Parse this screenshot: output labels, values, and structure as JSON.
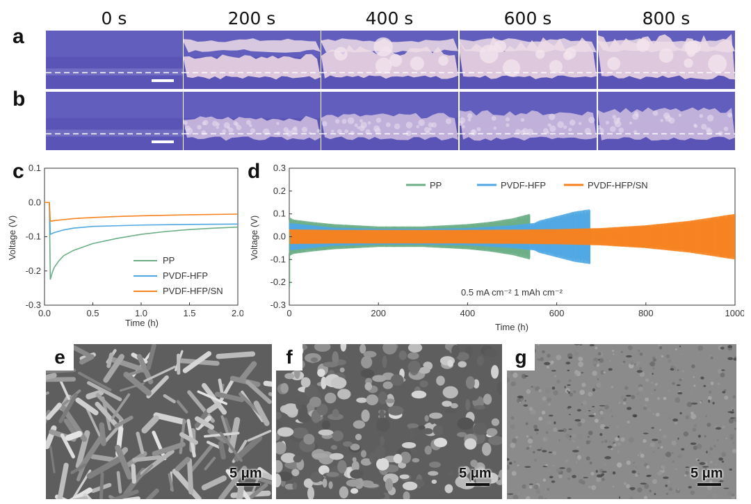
{
  "panels": {
    "a": "a",
    "b": "b",
    "c": "c",
    "d": "d",
    "e": "e",
    "f": "f",
    "g": "g"
  },
  "time_labels": [
    "0 s",
    "200 s",
    "400 s",
    "600 s",
    "800 s"
  ],
  "sem_scale_label": "5 μm",
  "colors": {
    "PP": "#6bae86",
    "PVDF-HFP": "#4ea7e3",
    "PVDF-HFP/SN": "#f7821e",
    "optical_bg": "#5a55b8",
    "deposit": "#e3cde0"
  },
  "chart_data": [
    {
      "type": "line",
      "panel": "c",
      "xlabel": "Time (h)",
      "ylabel": "Voltage (V)",
      "xlim": [
        0,
        2.0
      ],
      "ylim": [
        -0.3,
        0.1
      ],
      "xticks": [
        "0.0",
        "0.5",
        "1.0",
        "1.5",
        "2.0"
      ],
      "yticks": [
        "0.1",
        "0.0",
        "-0.1",
        "-0.2",
        "-0.3"
      ],
      "legend_position": "bottom-right",
      "series": [
        {
          "name": "PP",
          "color": "#6bae86",
          "x": [
            0,
            0.05,
            0.06,
            0.08,
            0.1,
            0.15,
            0.2,
            0.3,
            0.5,
            0.75,
            1.0,
            1.25,
            1.5,
            1.75,
            2.0
          ],
          "y": [
            0,
            0,
            -0.225,
            -0.205,
            -0.19,
            -0.17,
            -0.155,
            -0.14,
            -0.12,
            -0.105,
            -0.093,
            -0.085,
            -0.079,
            -0.075,
            -0.072
          ]
        },
        {
          "name": "PVDF-HFP",
          "color": "#4ea7e3",
          "x": [
            0,
            0.05,
            0.06,
            0.1,
            0.2,
            0.3,
            0.5,
            0.75,
            1.0,
            1.5,
            2.0
          ],
          "y": [
            0,
            0,
            -0.093,
            -0.088,
            -0.08,
            -0.075,
            -0.07,
            -0.068,
            -0.066,
            -0.064,
            -0.063
          ]
        },
        {
          "name": "PVDF-HFP/SN",
          "color": "#f7821e",
          "x": [
            0,
            0.05,
            0.06,
            0.1,
            0.2,
            0.3,
            0.5,
            0.75,
            1.0,
            1.5,
            2.0
          ],
          "y": [
            0,
            0,
            -0.055,
            -0.053,
            -0.05,
            -0.047,
            -0.044,
            -0.041,
            -0.039,
            -0.036,
            -0.034
          ]
        }
      ]
    },
    {
      "type": "line",
      "panel": "d",
      "xlabel": "Time (h)",
      "ylabel": "Voltage (V)",
      "xlim": [
        0,
        1000
      ],
      "ylim": [
        -0.3,
        0.3
      ],
      "xticks": [
        "0",
        "200",
        "400",
        "600",
        "800",
        "1000"
      ],
      "yticks": [
        "0.3",
        "0.2",
        "0.1",
        "0.0",
        "-0.1",
        "-0.2",
        "-0.3"
      ],
      "legend_position": "top-center",
      "annotation": "0.5 mA cm⁻²  1 mAh cm⁻²",
      "series": [
        {
          "name": "PP",
          "color": "#6bae86",
          "end": 540,
          "envelope_t": [
            0,
            10,
            50,
            100,
            200,
            300,
            400,
            450,
            500,
            540
          ],
          "envelope_v": [
            0.085,
            0.075,
            0.065,
            0.055,
            0.045,
            0.045,
            0.055,
            0.065,
            0.08,
            0.1
          ]
        },
        {
          "name": "PVDF-HFP",
          "color": "#4ea7e3",
          "end": 675,
          "envelope_t": [
            0,
            50,
            100,
            200,
            300,
            400,
            500,
            550,
            560,
            600,
            640,
            675
          ],
          "envelope_v": [
            0.06,
            0.05,
            0.04,
            0.035,
            0.035,
            0.038,
            0.05,
            0.06,
            0.07,
            0.09,
            0.11,
            0.12
          ]
        },
        {
          "name": "PVDF-HFP/SN",
          "color": "#f7821e",
          "end": 1000,
          "envelope_t": [
            0,
            100,
            200,
            300,
            400,
            500,
            600,
            700,
            800,
            900,
            1000
          ],
          "envelope_v": [
            0.032,
            0.03,
            0.03,
            0.03,
            0.03,
            0.031,
            0.033,
            0.038,
            0.05,
            0.07,
            0.1
          ]
        }
      ]
    }
  ]
}
